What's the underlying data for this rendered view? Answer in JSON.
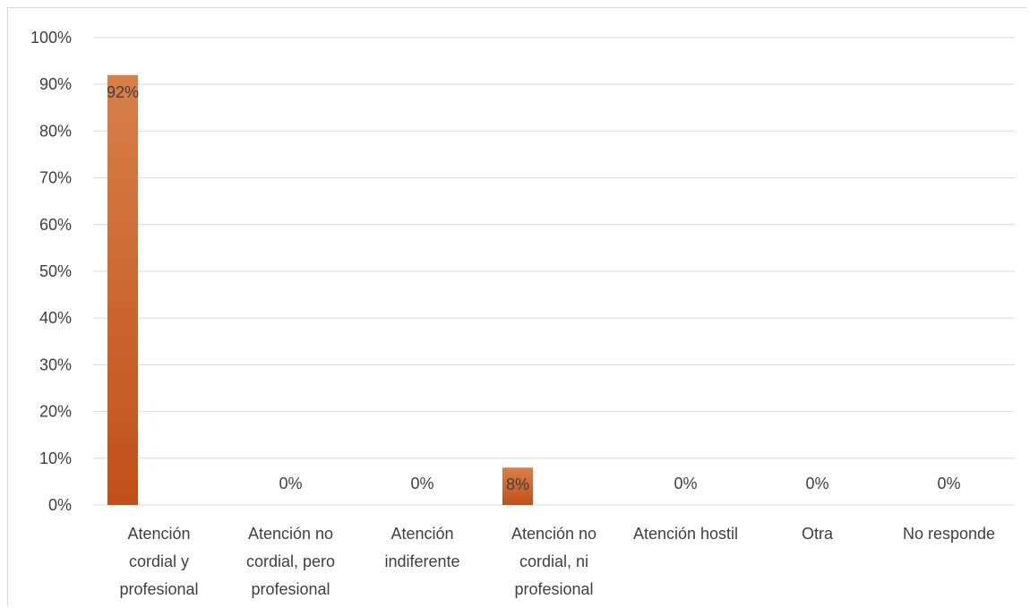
{
  "chart_data": {
    "type": "bar",
    "title": "",
    "xlabel": "",
    "ylabel": "",
    "categories": [
      [
        "Atención",
        "cordial y",
        "profesional"
      ],
      [
        "Atención no",
        "cordial, pero",
        "profesional"
      ],
      [
        "Atención",
        "indiferente"
      ],
      [
        "Atención no",
        "cordial, ni",
        "profesional"
      ],
      [
        "Atención hostil"
      ],
      [
        "Otra"
      ],
      [
        "No responde"
      ]
    ],
    "values": [
      92,
      0,
      0,
      8,
      0,
      0,
      0
    ],
    "data_labels": [
      "92%",
      "0%",
      "0%",
      "8%",
      "0%",
      "0%",
      "0%"
    ],
    "ylim": [
      0,
      100
    ],
    "y_ticks": [
      0,
      10,
      20,
      30,
      40,
      50,
      60,
      70,
      80,
      90,
      100
    ],
    "y_tick_labels": [
      "0%",
      "10%",
      "20%",
      "30%",
      "40%",
      "50%",
      "60%",
      "70%",
      "80%",
      "90%",
      "100%"
    ],
    "grid": true,
    "legend": "none",
    "bar_color_top": "#d8804a",
    "bar_color_bottom": "#c0501a",
    "grid_color": "#d9d9d9",
    "text_color": "#404040"
  }
}
